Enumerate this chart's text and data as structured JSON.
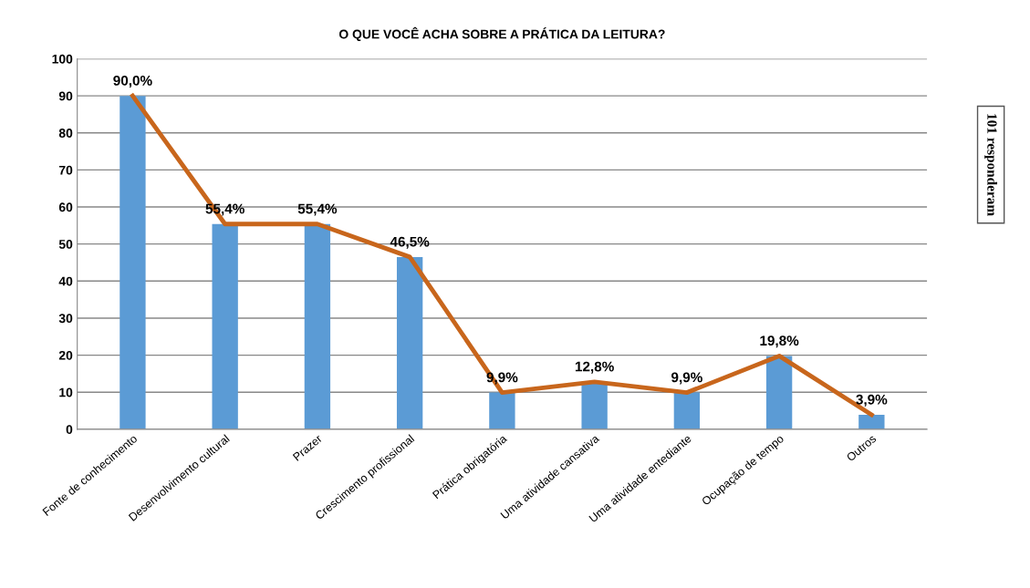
{
  "chart_data": {
    "type": "bar",
    "title": "O QUE VOCÊ ACHA SOBRE A PRÁTICA DA LEITURA?",
    "categories": [
      "Fonte de conhecimento",
      "Desenvolvimento cultural",
      "Prazer",
      "Crescimento profissional",
      "Prática obrigatória",
      "Uma atividade cansativa",
      "Uma atividade entediante",
      "Ocupação de tempo",
      "Outros"
    ],
    "series": [
      {
        "color": "#5b9bd5",
        "values": [
          90.0,
          55.4,
          55.4,
          46.5,
          9.9,
          12.8,
          9.9,
          19.8,
          3.9
        ],
        "value_labels": [
          "90,0%",
          "55,4%",
          "55,4%",
          "46,5%",
          "9,9%",
          "12,8%",
          "9,9%",
          "19,8%",
          "3,9%"
        ]
      },
      {
        "type": "line",
        "color": "#c8661c",
        "values": [
          90.0,
          55.4,
          55.4,
          46.5,
          9.9,
          12.8,
          9.9,
          19.8,
          3.9
        ]
      }
    ],
    "ylim": [
      0,
      100
    ],
    "yticks": [
      0,
      10,
      20,
      30,
      40,
      50,
      60,
      70,
      80,
      90,
      100
    ],
    "grid": "y",
    "annotations": [
      "101 responderam"
    ]
  }
}
